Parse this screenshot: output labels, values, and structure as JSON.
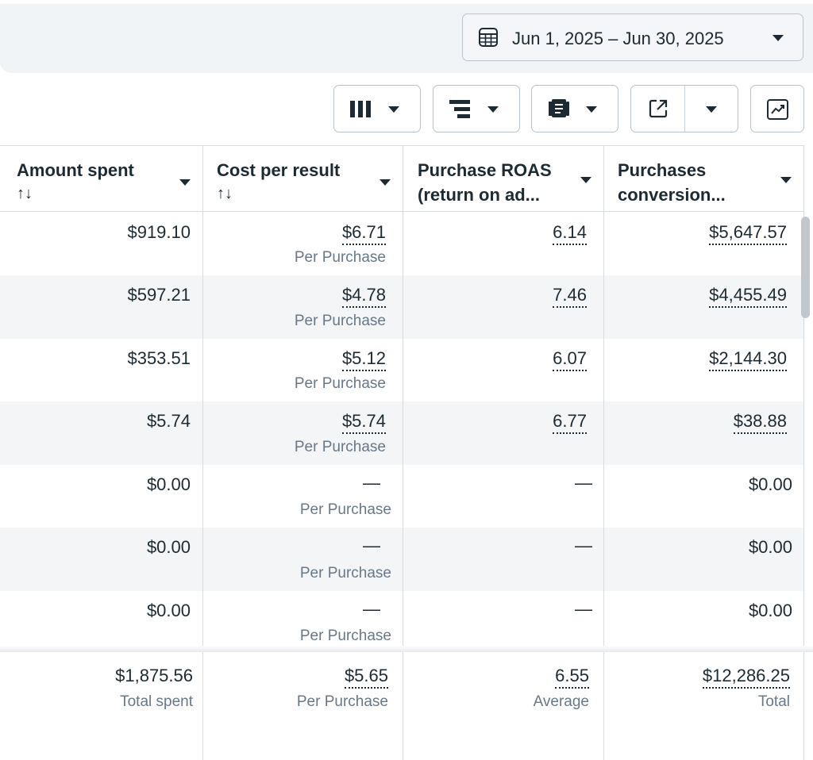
{
  "date_range": {
    "label": "Jun 1, 2025 – Jun 30, 2025"
  },
  "toolbar": {
    "columns_icon": "columns-icon",
    "breakdown_icon": "breakdown-icon",
    "reports_icon": "reports-icon",
    "export_icon": "export-icon",
    "chart_icon": "chart-trend-icon"
  },
  "columns": [
    {
      "title_line1": "Amount spent",
      "title_line2": "",
      "sort": "↑↓"
    },
    {
      "title_line1": "Cost per result",
      "title_line2": "",
      "sort": "↑↓"
    },
    {
      "title_line1": "Purchase ROAS",
      "title_line2": "(return on ad...",
      "sort": ""
    },
    {
      "title_line1": "Purchases",
      "title_line2": "conversion...",
      "sort": ""
    }
  ],
  "rows": [
    {
      "amount": "$919.10",
      "cost": "$6.71",
      "cost_sub": "Per Purchase",
      "roas": "6.14",
      "conv": "$5,647.57"
    },
    {
      "amount": "$597.21",
      "cost": "$4.78",
      "cost_sub": "Per Purchase",
      "roas": "7.46",
      "conv": "$4,455.49"
    },
    {
      "amount": "$353.51",
      "cost": "$5.12",
      "cost_sub": "Per Purchase",
      "roas": "6.07",
      "conv": "$2,144.30"
    },
    {
      "amount": "$5.74",
      "cost": "$5.74",
      "cost_sub": "Per Purchase",
      "roas": "6.77",
      "conv": "$38.88"
    },
    {
      "amount": "$0.00",
      "cost": "—",
      "cost_sub": "Per Purchase",
      "roas": "—",
      "conv": "$0.00"
    },
    {
      "amount": "$0.00",
      "cost": "—",
      "cost_sub": "Per Purchase",
      "roas": "—",
      "conv": "$0.00"
    },
    {
      "amount": "$0.00",
      "cost": "—",
      "cost_sub": "Per Purchase",
      "roas": "—",
      "conv": "$0.00"
    }
  ],
  "totals": {
    "amount": "$1,875.56",
    "amount_sub": "Total spent",
    "cost": "$5.65",
    "cost_sub": "Per Purchase",
    "roas": "6.55",
    "roas_sub": "Average",
    "conv": "$12,286.25",
    "conv_sub": "Total"
  }
}
